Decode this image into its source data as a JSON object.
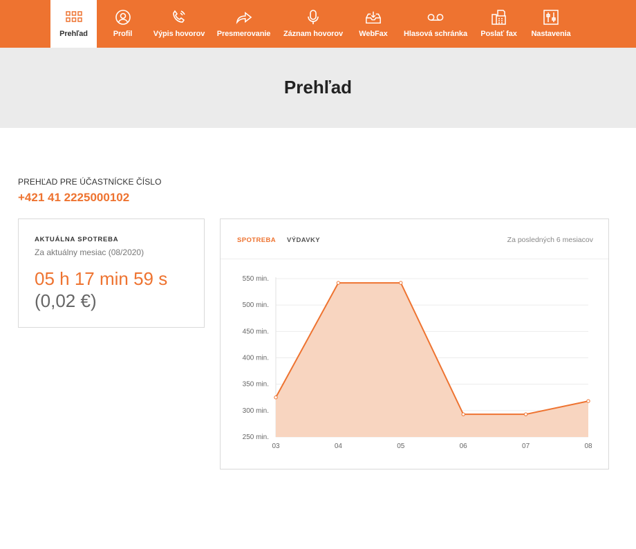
{
  "nav": {
    "items": [
      {
        "label": "Prehľad",
        "icon": "grid-icon",
        "active": true
      },
      {
        "label": "Profil",
        "icon": "user-icon",
        "active": false
      },
      {
        "label": "Výpis hovorov",
        "icon": "phone-ring-icon",
        "active": false
      },
      {
        "label": "Presmerovanie",
        "icon": "forward-arrow-icon",
        "active": false
      },
      {
        "label": "Záznam hovorov",
        "icon": "microphone-icon",
        "active": false
      },
      {
        "label": "WebFax",
        "icon": "inbox-tray-icon",
        "active": false
      },
      {
        "label": "Hlasová schránka",
        "icon": "voicemail-icon",
        "active": false
      },
      {
        "label": "Poslať fax",
        "icon": "fax-icon",
        "active": false
      },
      {
        "label": "Nastavenia",
        "icon": "sliders-icon",
        "active": false
      }
    ]
  },
  "header": {
    "title": "Prehľad"
  },
  "subscriber": {
    "heading": "PREHĽAD PRE ÚČASTNÍCKE ČÍSLO",
    "number": "+421 41 2225000102"
  },
  "usage_card": {
    "title": "AKTUÁLNA SPOTREBA",
    "subtitle": "Za aktuálny mesiac (08/2020)",
    "time": "05 h 17 min 59 s",
    "price": "(0,02 €)"
  },
  "chart_panel": {
    "tabs": [
      {
        "label": "SPOTREBA",
        "active": true
      },
      {
        "label": "VÝDAVKY",
        "active": false
      }
    ],
    "period_label": "Za posledných 6 mesiacov"
  },
  "colors": {
    "accent": "#ee7330",
    "fill": "#f8d5c0"
  },
  "chart_data": {
    "type": "area",
    "x": [
      "03",
      "04",
      "05",
      "06",
      "07",
      "08"
    ],
    "values": [
      325,
      542,
      542,
      293,
      293,
      318
    ],
    "y_ticks": [
      "550 min.",
      "500 min.",
      "450 min.",
      "400 min.",
      "350 min.",
      "300 min.",
      "250 min."
    ],
    "y_tick_values": [
      550,
      500,
      450,
      400,
      350,
      300,
      250
    ],
    "ylim": [
      250,
      550
    ],
    "grid": true,
    "xlabel": "",
    "ylabel": ""
  }
}
